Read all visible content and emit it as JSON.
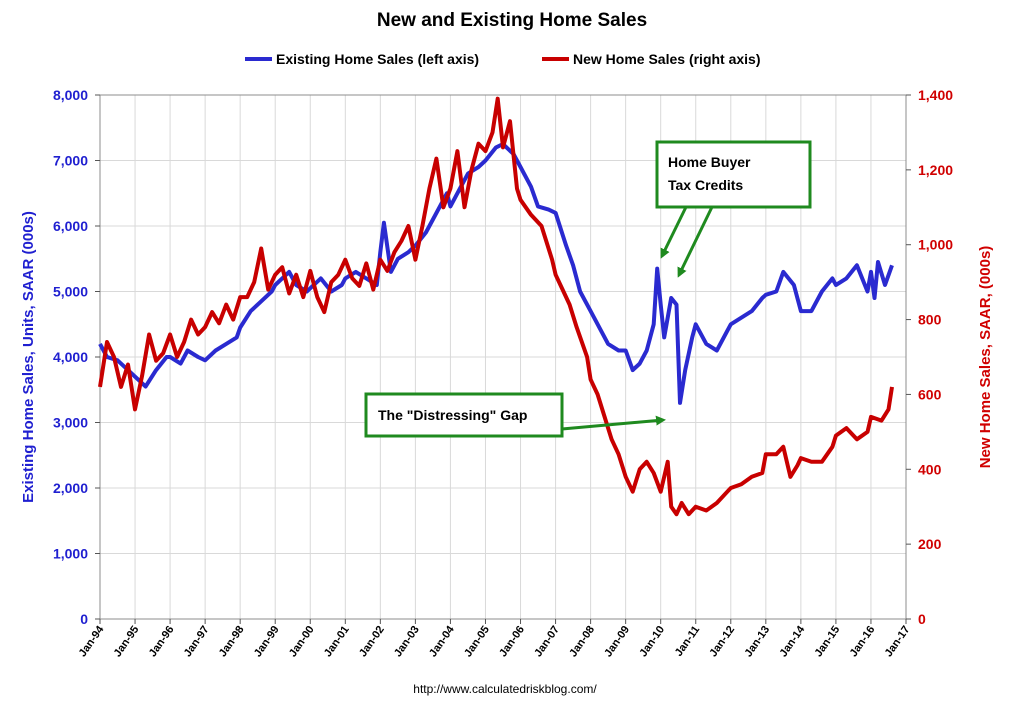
{
  "chart_data": {
    "type": "line",
    "title": "New and Existing Home Sales",
    "colors": {
      "existing": "#2a2ad0",
      "new": "#c80000",
      "left_axis": "#1f1fd0",
      "right_axis": "#d00000",
      "annotation_border": "#1f8a1f",
      "arrow": "#1f8a1f"
    },
    "legend": {
      "placement": "top-center"
    },
    "left_axis": {
      "label": "Existing Home Sales, Units, SAAR (000s)",
      "range": [
        0,
        8000
      ],
      "ticks": [
        "0",
        "1,000",
        "2,000",
        "3,000",
        "4,000",
        "5,000",
        "6,000",
        "7,000",
        "8,000"
      ]
    },
    "right_axis": {
      "label": "New Home Sales, SAAR, (000s)",
      "range": [
        0,
        1400
      ],
      "ticks": [
        "0",
        "200",
        "400",
        "600",
        "800",
        "1,000",
        "1,200",
        "1,400"
      ]
    },
    "x_axis": {
      "range": [
        1994,
        2017
      ],
      "ticks": [
        "Jan-94",
        "Jan-95",
        "Jan-96",
        "Jan-97",
        "Jan-98",
        "Jan-99",
        "Jan-00",
        "Jan-01",
        "Jan-02",
        "Jan-03",
        "Jan-04",
        "Jan-05",
        "Jan-06",
        "Jan-07",
        "Jan-08",
        "Jan-09",
        "Jan-10",
        "Jan-11",
        "Jan-12",
        "Jan-13",
        "Jan-14",
        "Jan-15",
        "Jan-16",
        "Jan-17"
      ]
    },
    "grid": true,
    "series": [
      {
        "name": "Existing Home Sales (left axis)",
        "axis": "left",
        "points": [
          [
            1994.0,
            4200
          ],
          [
            1994.2,
            4000
          ],
          [
            1994.5,
            3950
          ],
          [
            1994.8,
            3800
          ],
          [
            1995.0,
            3700
          ],
          [
            1995.3,
            3550
          ],
          [
            1995.6,
            3800
          ],
          [
            1995.9,
            4000
          ],
          [
            1996.0,
            4000
          ],
          [
            1996.3,
            3900
          ],
          [
            1996.5,
            4100
          ],
          [
            1996.8,
            4000
          ],
          [
            1997.0,
            3950
          ],
          [
            1997.3,
            4100
          ],
          [
            1997.6,
            4200
          ],
          [
            1997.9,
            4300
          ],
          [
            1998.0,
            4450
          ],
          [
            1998.3,
            4700
          ],
          [
            1998.6,
            4850
          ],
          [
            1998.9,
            5000
          ],
          [
            1999.0,
            5100
          ],
          [
            1999.2,
            5200
          ],
          [
            1999.4,
            5300
          ],
          [
            1999.6,
            5100
          ],
          [
            1999.9,
            5000
          ],
          [
            2000.0,
            5050
          ],
          [
            2000.3,
            5200
          ],
          [
            2000.6,
            5000
          ],
          [
            2000.9,
            5100
          ],
          [
            2001.0,
            5200
          ],
          [
            2001.3,
            5300
          ],
          [
            2001.6,
            5200
          ],
          [
            2001.9,
            5100
          ],
          [
            2002.0,
            5600
          ],
          [
            2002.1,
            6050
          ],
          [
            2002.3,
            5300
          ],
          [
            2002.5,
            5500
          ],
          [
            2002.8,
            5600
          ],
          [
            2003.0,
            5700
          ],
          [
            2003.3,
            5900
          ],
          [
            2003.5,
            6100
          ],
          [
            2003.7,
            6300
          ],
          [
            2003.9,
            6500
          ],
          [
            2004.0,
            6300
          ],
          [
            2004.3,
            6600
          ],
          [
            2004.5,
            6800
          ],
          [
            2004.8,
            6900
          ],
          [
            2005.0,
            7000
          ],
          [
            2005.3,
            7200
          ],
          [
            2005.5,
            7250
          ],
          [
            2005.8,
            7100
          ],
          [
            2006.0,
            6900
          ],
          [
            2006.3,
            6600
          ],
          [
            2006.5,
            6300
          ],
          [
            2006.8,
            6250
          ],
          [
            2007.0,
            6200
          ],
          [
            2007.3,
            5700
          ],
          [
            2007.5,
            5400
          ],
          [
            2007.7,
            5000
          ],
          [
            2008.0,
            4700
          ],
          [
            2008.3,
            4400
          ],
          [
            2008.5,
            4200
          ],
          [
            2008.8,
            4100
          ],
          [
            2009.0,
            4100
          ],
          [
            2009.2,
            3800
          ],
          [
            2009.4,
            3900
          ],
          [
            2009.6,
            4100
          ],
          [
            2009.8,
            4500
          ],
          [
            2009.9,
            5350
          ],
          [
            2010.0,
            4800
          ],
          [
            2010.1,
            4300
          ],
          [
            2010.3,
            4900
          ],
          [
            2010.45,
            4800
          ],
          [
            2010.55,
            3300
          ],
          [
            2010.7,
            3800
          ],
          [
            2010.9,
            4300
          ],
          [
            2011.0,
            4500
          ],
          [
            2011.3,
            4200
          ],
          [
            2011.6,
            4100
          ],
          [
            2011.9,
            4400
          ],
          [
            2012.0,
            4500
          ],
          [
            2012.3,
            4600
          ],
          [
            2012.6,
            4700
          ],
          [
            2012.9,
            4900
          ],
          [
            2013.0,
            4950
          ],
          [
            2013.3,
            5000
          ],
          [
            2013.5,
            5300
          ],
          [
            2013.8,
            5100
          ],
          [
            2014.0,
            4700
          ],
          [
            2014.3,
            4700
          ],
          [
            2014.6,
            5000
          ],
          [
            2014.9,
            5200
          ],
          [
            2015.0,
            5100
          ],
          [
            2015.3,
            5200
          ],
          [
            2015.6,
            5400
          ],
          [
            2015.9,
            5000
          ],
          [
            2016.0,
            5300
          ],
          [
            2016.1,
            4900
          ],
          [
            2016.2,
            5450
          ],
          [
            2016.4,
            5100
          ],
          [
            2016.6,
            5400
          ]
        ]
      },
      {
        "name": "New Home Sales (right axis)",
        "axis": "right",
        "points": [
          [
            1994.0,
            620
          ],
          [
            1994.2,
            740
          ],
          [
            1994.4,
            700
          ],
          [
            1994.6,
            620
          ],
          [
            1994.8,
            680
          ],
          [
            1995.0,
            560
          ],
          [
            1995.2,
            650
          ],
          [
            1995.4,
            760
          ],
          [
            1995.6,
            690
          ],
          [
            1995.8,
            710
          ],
          [
            1996.0,
            760
          ],
          [
            1996.2,
            700
          ],
          [
            1996.4,
            740
          ],
          [
            1996.6,
            800
          ],
          [
            1996.8,
            760
          ],
          [
            1997.0,
            780
          ],
          [
            1997.2,
            820
          ],
          [
            1997.4,
            790
          ],
          [
            1997.6,
            840
          ],
          [
            1997.8,
            800
          ],
          [
            1998.0,
            860
          ],
          [
            1998.2,
            860
          ],
          [
            1998.4,
            900
          ],
          [
            1998.6,
            990
          ],
          [
            1998.8,
            880
          ],
          [
            1999.0,
            920
          ],
          [
            1999.2,
            940
          ],
          [
            1999.4,
            870
          ],
          [
            1999.6,
            920
          ],
          [
            1999.8,
            860
          ],
          [
            2000.0,
            930
          ],
          [
            2000.2,
            860
          ],
          [
            2000.4,
            820
          ],
          [
            2000.6,
            900
          ],
          [
            2000.8,
            920
          ],
          [
            2001.0,
            960
          ],
          [
            2001.2,
            910
          ],
          [
            2001.4,
            890
          ],
          [
            2001.6,
            950
          ],
          [
            2001.8,
            880
          ],
          [
            2002.0,
            960
          ],
          [
            2002.2,
            930
          ],
          [
            2002.4,
            980
          ],
          [
            2002.6,
            1010
          ],
          [
            2002.8,
            1050
          ],
          [
            2003.0,
            960
          ],
          [
            2003.2,
            1050
          ],
          [
            2003.4,
            1150
          ],
          [
            2003.6,
            1230
          ],
          [
            2003.8,
            1100
          ],
          [
            2004.0,
            1150
          ],
          [
            2004.2,
            1250
          ],
          [
            2004.4,
            1100
          ],
          [
            2004.6,
            1200
          ],
          [
            2004.8,
            1270
          ],
          [
            2005.0,
            1250
          ],
          [
            2005.2,
            1300
          ],
          [
            2005.35,
            1390
          ],
          [
            2005.5,
            1260
          ],
          [
            2005.7,
            1330
          ],
          [
            2005.9,
            1150
          ],
          [
            2006.0,
            1120
          ],
          [
            2006.3,
            1080
          ],
          [
            2006.6,
            1050
          ],
          [
            2006.9,
            960
          ],
          [
            2007.0,
            920
          ],
          [
            2007.2,
            880
          ],
          [
            2007.4,
            840
          ],
          [
            2007.6,
            780
          ],
          [
            2007.9,
            700
          ],
          [
            2008.0,
            640
          ],
          [
            2008.2,
            600
          ],
          [
            2008.4,
            540
          ],
          [
            2008.6,
            480
          ],
          [
            2008.8,
            440
          ],
          [
            2009.0,
            380
          ],
          [
            2009.2,
            340
          ],
          [
            2009.4,
            400
          ],
          [
            2009.6,
            420
          ],
          [
            2009.8,
            390
          ],
          [
            2010.0,
            340
          ],
          [
            2010.2,
            420
          ],
          [
            2010.3,
            300
          ],
          [
            2010.45,
            280
          ],
          [
            2010.6,
            310
          ],
          [
            2010.8,
            280
          ],
          [
            2011.0,
            300
          ],
          [
            2011.3,
            290
          ],
          [
            2011.6,
            310
          ],
          [
            2011.9,
            340
          ],
          [
            2012.0,
            350
          ],
          [
            2012.3,
            360
          ],
          [
            2012.6,
            380
          ],
          [
            2012.9,
            390
          ],
          [
            2013.0,
            440
          ],
          [
            2013.3,
            440
          ],
          [
            2013.5,
            460
          ],
          [
            2013.7,
            380
          ],
          [
            2013.9,
            410
          ],
          [
            2014.0,
            430
          ],
          [
            2014.3,
            420
          ],
          [
            2014.6,
            420
          ],
          [
            2014.9,
            460
          ],
          [
            2015.0,
            490
          ],
          [
            2015.3,
            510
          ],
          [
            2015.6,
            480
          ],
          [
            2015.9,
            500
          ],
          [
            2016.0,
            540
          ],
          [
            2016.3,
            530
          ],
          [
            2016.5,
            560
          ],
          [
            2016.6,
            620
          ]
        ]
      }
    ],
    "annotations": [
      {
        "text_lines": [
          "Home Buyer",
          "Tax Credits"
        ],
        "arrows_to": [
          [
            2009.9,
            5350
          ],
          [
            2010.45,
            4800
          ]
        ]
      },
      {
        "text_lines": [
          "The \"Distressing\" Gap"
        ],
        "arrows_to": [
          [
            2009.7,
            3000
          ]
        ]
      }
    ],
    "source": "http://www.calculatedriskblog.com/"
  }
}
